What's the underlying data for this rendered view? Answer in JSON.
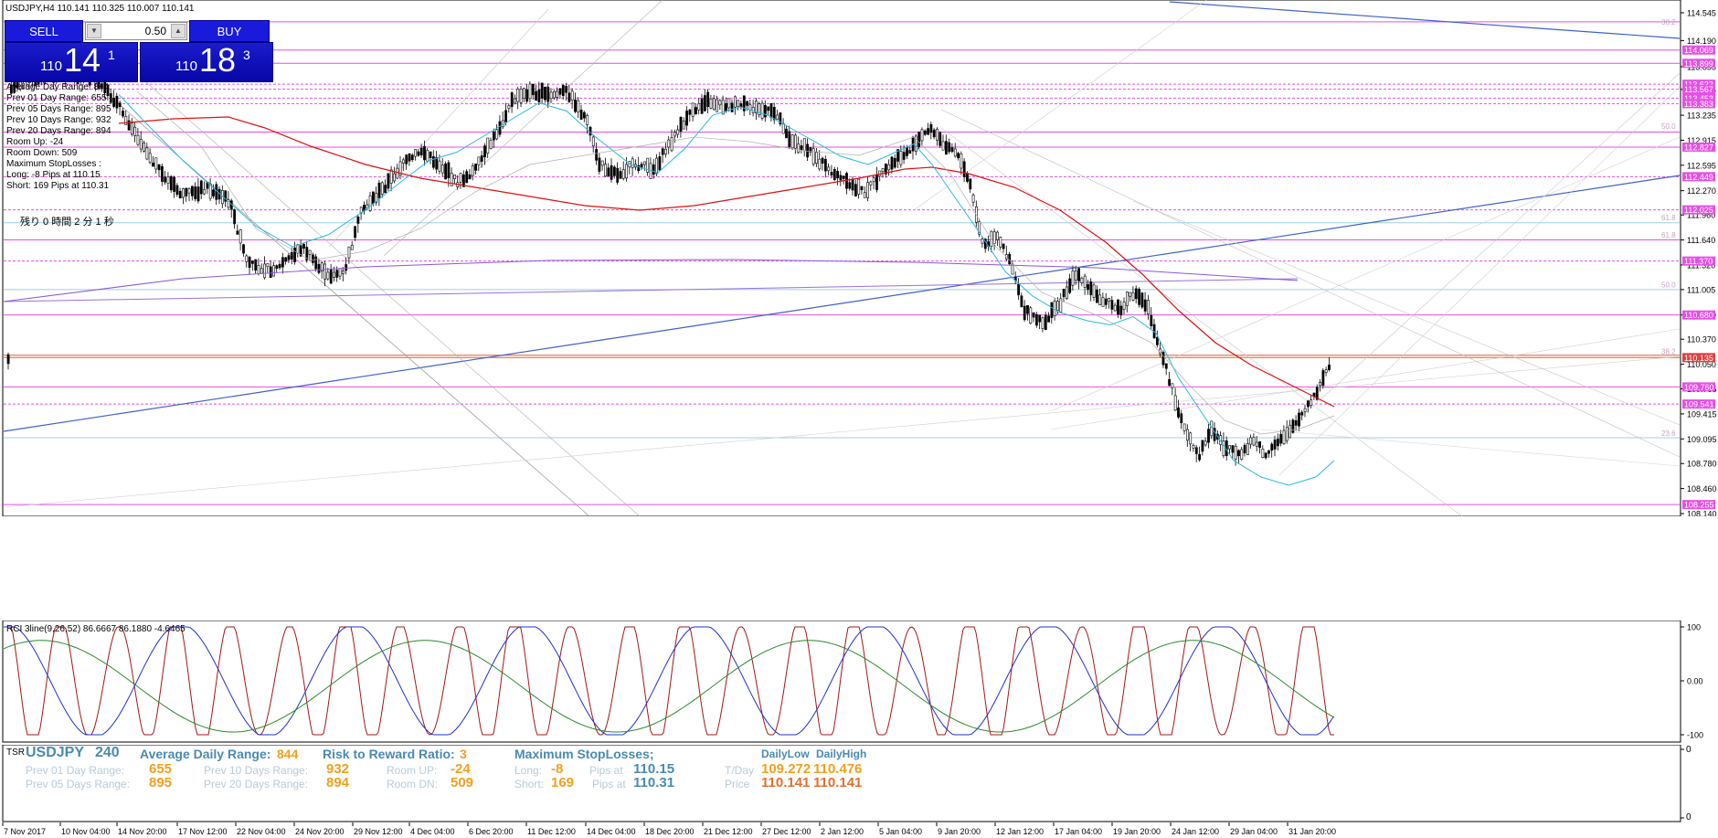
{
  "main_chart": {
    "header": "USDJPY,H4  110.141 110.325 110.007 110.141",
    "price_axis": [
      "114.545",
      "114.190",
      "113.855",
      "113.565",
      "113.235",
      "112.915",
      "112.595",
      "112.270",
      "111.960",
      "111.640",
      "111.320",
      "111.005",
      "110.680",
      "110.370",
      "110.050",
      "109.735",
      "109.415",
      "109.095",
      "108.780",
      "108.460",
      "108.140"
    ],
    "level_tags": [
      "114.069",
      "113.899",
      "113.632",
      "113.567",
      "113.453",
      "113.383",
      "112.827",
      "112.449",
      "112.025",
      "111.370",
      "110.680",
      "110.135",
      "109.760",
      "109.541",
      "108.255"
    ],
    "fib_labels": [
      "38.2",
      "50.0",
      "61.8",
      "61.8",
      "50.0",
      "38.2",
      "23.6"
    ],
    "countdown": "残り 0 時間 2 分 1 秒",
    "info_lines": [
      "Average Day  Range: 844",
      "Prev 01 Day  Range: 655",
      "Prev 05 Days Range: 895",
      "Prev 10 Days Range: 932",
      "Prev 20 Days Range: 894",
      "Room Up: -24",
      "Room Down: 509",
      "Maximum StopLosses :",
      "Long:  -8 Pips at 110.15",
      "Short: 169 Pips at 110.31"
    ]
  },
  "trade_panel": {
    "sell_label": "SELL",
    "buy_label": "BUY",
    "lot_value": "0.50",
    "sell_price": {
      "a": "110",
      "b": "14",
      "c": "1"
    },
    "buy_price": {
      "a": "110",
      "b": "18",
      "c": "3"
    }
  },
  "rci_pane": {
    "header": "RCI 3line(9,26,52) 86.6667 86.1880 -4.6465",
    "axis": [
      "100",
      "0.00",
      "-100"
    ]
  },
  "tsr_pane": {
    "tag": "TSR",
    "symbol": "USDJPY",
    "tf": "240",
    "adr_label": "Average Daily Range:",
    "adr_value": "844",
    "rr_label": "Risk to Reward Ratio:",
    "rr_value": "3",
    "msl_label": "Maximum StopLosses;",
    "p01_label": "Prev 01 Day Range:",
    "p01_value": "655",
    "p05_label": "Prev 05 Days Range:",
    "p05_value": "895",
    "p10_label": "Prev 10 Days Range:",
    "p10_value": "932",
    "p20_label": "Prev 20 Days Range:",
    "p20_value": "894",
    "roomup_label": "Room UP:",
    "roomup_value": "-24",
    "roomdn_label": "Room DN:",
    "roomdn_value": "509",
    "long_label": "Long:",
    "long_value": "-8",
    "long_at_label": "Pips at",
    "long_price": "110.15",
    "short_label": "Short:",
    "short_value": "169",
    "short_at_label": "Pips at",
    "short_price": "110.31",
    "daily_low_label": "DailyLow",
    "daily_high_label": "DailyHigh",
    "tday_label": "T/Day",
    "tday_low": "109.272",
    "tday_high": "110.476",
    "price_label": "Price",
    "price_low": "110.141",
    "price_high": "110.141",
    "axis": [
      "0",
      "0"
    ]
  },
  "time_axis": [
    "7 Nov 2017",
    "10 Nov 04:00",
    "14 Nov 20:00",
    "17 Nov 12:00",
    "22 Nov 04:00",
    "24 Nov 20:00",
    "29 Nov 12:00",
    "4 Dec 04:00",
    "6 Dec 20:00",
    "11 Dec 12:00",
    "14 Dec 04:00",
    "18 Dec 20:00",
    "21 Dec 12:00",
    "27 Dec 12:00",
    "2 Jan 12:00",
    "5 Jan 04:00",
    "9 Jan 20:00",
    "12 Jan 12:00",
    "17 Jan 04:00",
    "19 Jan 20:00",
    "24 Jan 12:00",
    "29 Jan 04:00",
    "31 Jan 20:00"
  ],
  "colors": {
    "pink": "#e64fe6",
    "lightblue": "#9fd0e0",
    "blue": "#3355cc",
    "red": "#e01010",
    "cyan": "#2bb8e0",
    "purple": "#8a5ad8",
    "orange": "#f0a020",
    "steel": "#4a8ab0"
  }
}
